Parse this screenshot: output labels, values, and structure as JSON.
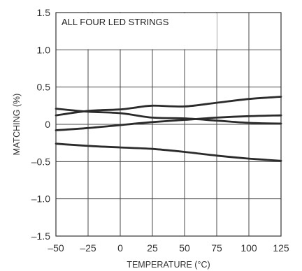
{
  "chart_data": {
    "type": "line",
    "annotation": "ALL FOUR LED STRINGS",
    "xlabel": "TEMPERATURE (°C)",
    "ylabel": "MATCHING (%)",
    "xlim": [
      -50,
      125
    ],
    "ylim": [
      -1.5,
      1.5
    ],
    "x_ticks": [
      -50,
      -25,
      0,
      25,
      50,
      75,
      100,
      125
    ],
    "x_tick_labels": [
      "–50",
      "–25",
      "0",
      "25",
      "50",
      "75",
      "100",
      "125"
    ],
    "y_ticks": [
      1.5,
      1.0,
      0.5,
      0,
      -0.5,
      -1.0,
      -1.5
    ],
    "y_tick_labels": [
      "1.5",
      "1.0",
      "0.5",
      "0",
      "–0.5",
      "–1.0",
      "–1.5"
    ],
    "grid": true,
    "line_color": "#2b2b2b",
    "series": [
      {
        "x": [
          -50,
          -25,
          0,
          10,
          25,
          50,
          75,
          100,
          125
        ],
        "values": [
          0.12,
          0.18,
          0.2,
          0.22,
          0.25,
          0.24,
          0.29,
          0.34,
          0.37
        ]
      },
      {
        "x": [
          -50,
          -25,
          0,
          25,
          50,
          75,
          100,
          125
        ],
        "values": [
          0.21,
          0.17,
          0.15,
          0.09,
          0.08,
          0.05,
          0.02,
          0.01
        ]
      },
      {
        "x": [
          -50,
          -25,
          0,
          25,
          50,
          75,
          100,
          125
        ],
        "values": [
          -0.08,
          -0.05,
          -0.01,
          0.03,
          0.06,
          0.09,
          0.11,
          0.12
        ]
      },
      {
        "x": [
          -50,
          -25,
          0,
          25,
          50,
          75,
          100,
          125
        ],
        "values": [
          -0.26,
          -0.29,
          -0.31,
          -0.33,
          -0.37,
          -0.42,
          -0.46,
          -0.49
        ]
      }
    ]
  }
}
